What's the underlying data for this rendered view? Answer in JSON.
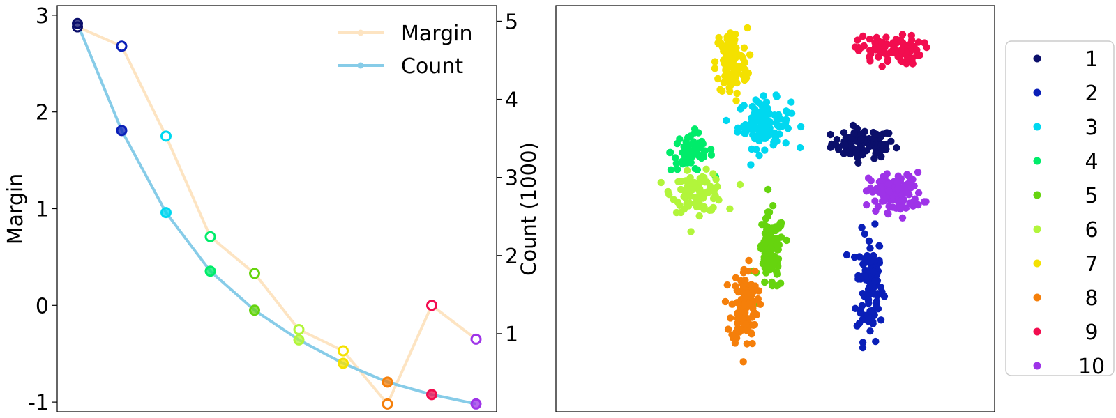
{
  "colors": {
    "class": [
      "#0b0f6b",
      "#0a1fb8",
      "#00d8f0",
      "#00ec6a",
      "#66d40e",
      "#b2f53b",
      "#f4e100",
      "#f57f0a",
      "#f20d4f",
      "#9e33e8"
    ],
    "margin_line": "#fde4c2",
    "count_line": "#87cce8"
  },
  "chart_data": [
    {
      "type": "line",
      "title": "",
      "x": [
        1,
        2,
        3,
        4,
        5,
        6,
        7,
        8,
        9,
        10
      ],
      "xlabel": "",
      "ylabel": "Margin",
      "y2label": "Count (1000)",
      "ylim": [
        -1.1,
        3.1
      ],
      "y2lim": [
        0.0,
        5.2
      ],
      "yticks": [
        "3",
        "2",
        "1",
        "0",
        "-1"
      ],
      "y2ticks": [
        "5",
        "4",
        "3",
        "2",
        "1"
      ],
      "legend_position": "top-right",
      "series": [
        {
          "name": "Margin",
          "axis": "left",
          "values": [
            2.88,
            2.68,
            1.75,
            0.71,
            0.33,
            -0.25,
            -0.47,
            -1.02,
            0.0,
            -0.35
          ]
        },
        {
          "name": "Count",
          "axis": "right",
          "values": [
            4.97,
            3.6,
            2.55,
            1.8,
            1.3,
            0.92,
            0.62,
            0.38,
            0.22,
            0.1
          ]
        }
      ]
    },
    {
      "type": "scatter",
      "title": "",
      "xlabel": "",
      "ylabel": "",
      "legend_position": "outside-right",
      "legend": [
        "1",
        "2",
        "3",
        "4",
        "5",
        "6",
        "7",
        "8",
        "9",
        "10"
      ],
      "clusters": [
        {
          "label": "1",
          "center": [
            0.4,
            0.32
          ],
          "spread": [
            0.12,
            0.06
          ],
          "count": 85
        },
        {
          "label": "2",
          "center": [
            0.43,
            -0.38
          ],
          "spread": [
            0.05,
            0.22
          ],
          "count": 110
        },
        {
          "label": "3",
          "center": [
            -0.05,
            0.42
          ],
          "spread": [
            0.1,
            0.1
          ],
          "count": 110
        },
        {
          "label": "4",
          "center": [
            -0.38,
            0.28
          ],
          "spread": [
            0.08,
            0.08
          ],
          "count": 60
        },
        {
          "label": "5",
          "center": [
            -0.02,
            -0.22
          ],
          "spread": [
            0.05,
            0.16
          ],
          "count": 90
        },
        {
          "label": "6",
          "center": [
            -0.35,
            0.08
          ],
          "spread": [
            0.1,
            0.08
          ],
          "count": 90
        },
        {
          "label": "7",
          "center": [
            -0.2,
            0.72
          ],
          "spread": [
            0.06,
            0.14
          ],
          "count": 110
        },
        {
          "label": "8",
          "center": [
            -0.14,
            -0.48
          ],
          "spread": [
            0.05,
            0.16
          ],
          "count": 110
        },
        {
          "label": "9",
          "center": [
            0.52,
            0.78
          ],
          "spread": [
            0.12,
            0.06
          ],
          "count": 90
        },
        {
          "label": "10",
          "center": [
            0.55,
            0.08
          ],
          "spread": [
            0.1,
            0.08
          ],
          "count": 110
        }
      ]
    }
  ]
}
